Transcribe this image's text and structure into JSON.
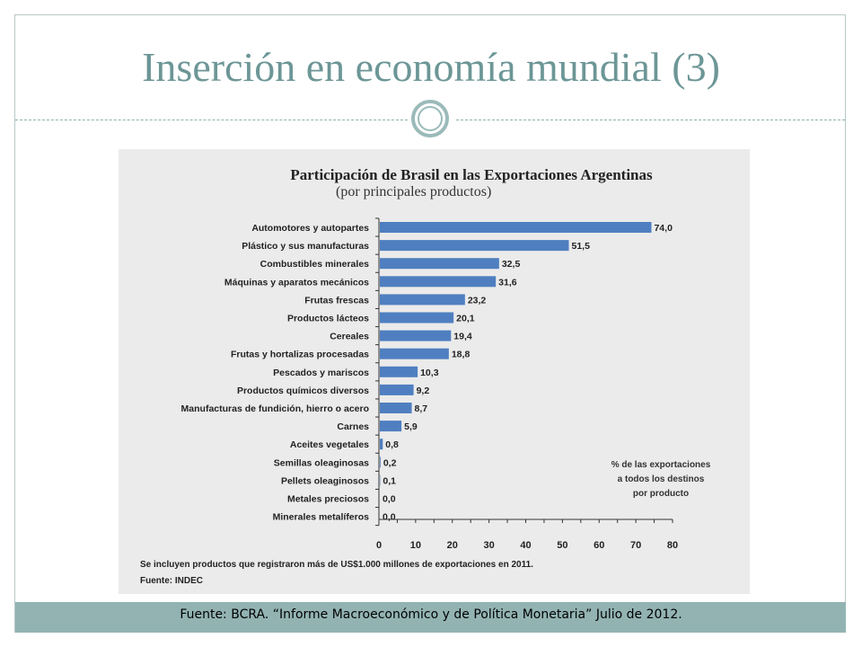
{
  "slide": {
    "title": "Inserción en economía mundial (3)",
    "footer": "Fuente: BCRA. “Informe Macroeconómico y de Política Monetaria” Julio de 2012."
  },
  "colors": {
    "accent": "#6d9696",
    "bar": "#4f7fc0",
    "panel": "#ebebeb",
    "footer_bar": "#93b3b3"
  },
  "chart_data": {
    "type": "bar",
    "orientation": "horizontal",
    "title": "Participación de Brasil en las Exportaciones Argentinas",
    "subtitle": "(por principales productos)",
    "categories": [
      "Automotores y autopartes",
      "Plástico y sus manufacturas",
      "Combustibles minerales",
      "Máquinas y aparatos mecánicos",
      "Frutas frescas",
      "Productos lácteos",
      "Cereales",
      "Frutas y hortalizas procesadas",
      "Pescados y mariscos",
      "Productos químicos diversos",
      "Manufacturas de fundición, hierro o acero",
      "Carnes",
      "Aceites vegetales",
      "Semillas oleaginosas",
      "Pellets oleaginosos",
      "Metales preciosos",
      "Minerales metalíferos"
    ],
    "values": [
      74.0,
      51.5,
      32.5,
      31.6,
      23.2,
      20.1,
      19.4,
      18.8,
      10.3,
      9.2,
      8.7,
      5.9,
      0.8,
      0.2,
      0.1,
      0.0,
      0.0
    ],
    "value_labels": [
      "74,0",
      "51,5",
      "32,5",
      "31,6",
      "23,2",
      "20,1",
      "19,4",
      "18,8",
      "10,3",
      "9,2",
      "8,7",
      "5,9",
      "0,8",
      "0,2",
      "0,1",
      "0,0",
      "0,0"
    ],
    "xlim": [
      0,
      80
    ],
    "xticks": [
      0,
      10,
      20,
      30,
      40,
      50,
      60,
      70,
      80
    ],
    "xtick_labels": [
      "0",
      "10",
      "20",
      "30",
      "40",
      "50",
      "60",
      "70",
      "80"
    ],
    "legend_note": [
      "% de las exportaciones",
      "a todos los destinos",
      "por producto"
    ],
    "notes": [
      "Se incluyen productos que registraron más de US$1.000 millones de exportaciones en 2011.",
      "Fuente: INDEC"
    ],
    "grid": false
  }
}
